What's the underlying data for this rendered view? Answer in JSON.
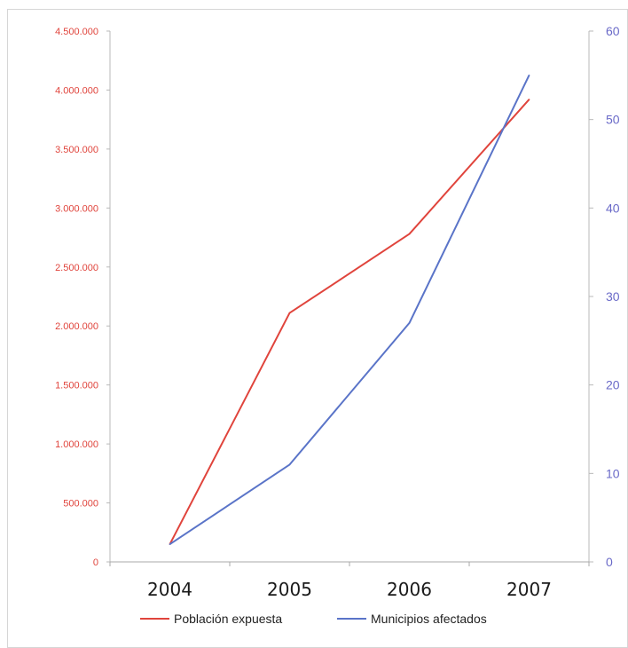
{
  "chart_data": {
    "type": "line",
    "categories": [
      "2004",
      "2005",
      "2006",
      "2007"
    ],
    "y_left": {
      "ylim": [
        0,
        4500000
      ],
      "ticks": [
        {
          "v": 0,
          "label": "0"
        },
        {
          "v": 500000,
          "label": "500.000"
        },
        {
          "v": 1000000,
          "label": "1.000.000"
        },
        {
          "v": 1500000,
          "label": "1.500.000"
        },
        {
          "v": 2000000,
          "label": "2.000.000"
        },
        {
          "v": 2500000,
          "label": "2.500.000"
        },
        {
          "v": 3000000,
          "label": "3.000.000"
        },
        {
          "v": 3500000,
          "label": "3.500.000"
        },
        {
          "v": 4000000,
          "label": "4.000.000"
        },
        {
          "v": 4500000,
          "label": "4.500.000"
        }
      ]
    },
    "y_right": {
      "ylim": [
        0,
        60
      ],
      "ticks": [
        {
          "v": 0,
          "label": "0"
        },
        {
          "v": 10,
          "label": "10"
        },
        {
          "v": 20,
          "label": "20"
        },
        {
          "v": 30,
          "label": "30"
        },
        {
          "v": 40,
          "label": "40"
        },
        {
          "v": 50,
          "label": "50"
        },
        {
          "v": 60,
          "label": "60"
        }
      ]
    },
    "series": [
      {
        "name": "Población expuesta",
        "axis": "left",
        "color": "#e0443c",
        "values": [
          150000,
          2110000,
          2780000,
          3920000
        ]
      },
      {
        "name": "Municipios afectados",
        "axis": "right",
        "color": "#5a74c8",
        "values": [
          2,
          11,
          27,
          55
        ]
      }
    ],
    "legend": "bottom",
    "grid": false,
    "axis_colors": {
      "left": "#e0443c",
      "right": "#6a6ac8",
      "x": "#999999"
    }
  }
}
